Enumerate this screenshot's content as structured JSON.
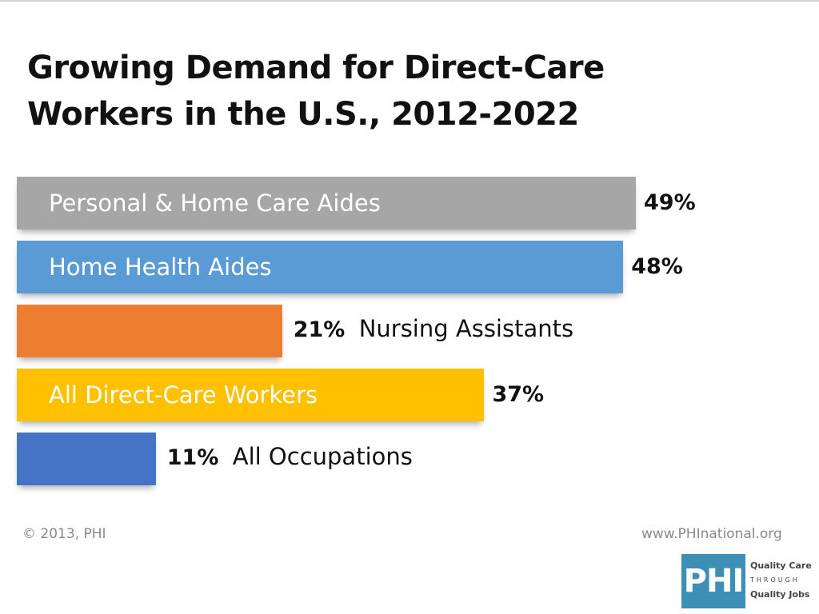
{
  "title_lines": [
    "Growing Demand for Direct-Care",
    "Workers in the U.S., 2012-2022"
  ],
  "footer": {
    "copyright": "© 2013, PHI",
    "website": "www.PHInational.org"
  },
  "logo": {
    "mark": "PHI",
    "tagline_line1": "Quality Care",
    "tagline_line2": "THROUGH",
    "tagline_line3": "Quality Jobs",
    "color": "#3d8fb6"
  },
  "chart_data": {
    "type": "bar",
    "orientation": "horizontal",
    "title": "Growing Demand for Direct-Care Workers in the U.S., 2012-2022",
    "xlabel": "",
    "ylabel": "",
    "xlim": [
      0,
      50
    ],
    "grid": false,
    "categories": [
      "Personal & Home Care Aides",
      "Home Health Aides",
      "Nursing Assistants",
      "All Direct-Care Workers",
      "All Occupations"
    ],
    "values": [
      49,
      48,
      21,
      37,
      11
    ],
    "value_labels": [
      "49%",
      "48%",
      "21%",
      "37%",
      "11%"
    ],
    "category_label_inside_bar": [
      true,
      true,
      false,
      true,
      false
    ],
    "colors": [
      "#a6a6a6",
      "#5b9bd5",
      "#ed7d31",
      "#ffc000",
      "#4472c4"
    ]
  }
}
